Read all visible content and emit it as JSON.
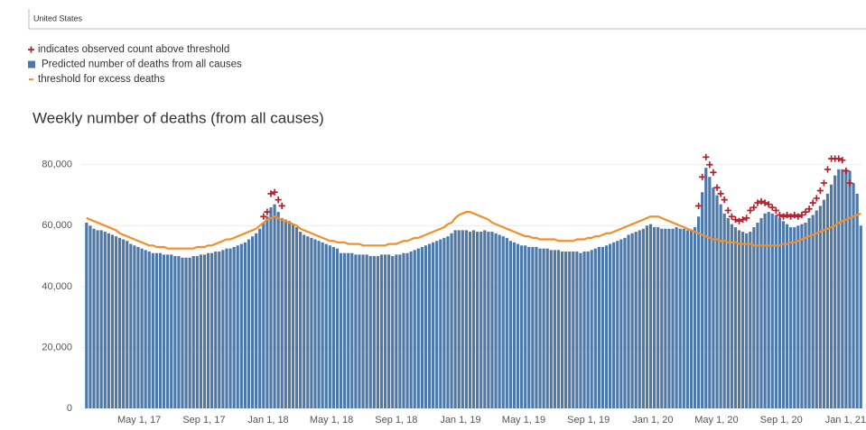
{
  "filter": "United States",
  "chart_data": {
    "type": "bar",
    "title": "Weekly number of deaths (from all causes)",
    "x": [
      "2017-01-21",
      "2017-01-28",
      "2017-02-04",
      "2017-02-11",
      "2017-02-18",
      "2017-02-25",
      "2017-03-04",
      "2017-03-11",
      "2017-03-18",
      "2017-03-25",
      "2017-04-01",
      "2017-04-08",
      "2017-04-15",
      "2017-04-22",
      "2017-04-29",
      "2017-05-06",
      "2017-05-13",
      "2017-05-20",
      "2017-05-27",
      "2017-06-03",
      "2017-06-10",
      "2017-06-17",
      "2017-06-24",
      "2017-07-01",
      "2017-07-08",
      "2017-07-15",
      "2017-07-22",
      "2017-07-29",
      "2017-08-05",
      "2017-08-12",
      "2017-08-19",
      "2017-08-26",
      "2017-09-02",
      "2017-09-09",
      "2017-09-16",
      "2017-09-23",
      "2017-09-30",
      "2017-10-07",
      "2017-10-14",
      "2017-10-21",
      "2017-10-28",
      "2017-11-04",
      "2017-11-11",
      "2017-11-18",
      "2017-11-25",
      "2017-12-02",
      "2017-12-09",
      "2017-12-16",
      "2017-12-23",
      "2017-12-30",
      "2018-01-06",
      "2018-01-13",
      "2018-01-20",
      "2018-01-27",
      "2018-02-03",
      "2018-02-10",
      "2018-02-17",
      "2018-02-24",
      "2018-03-03",
      "2018-03-10",
      "2018-03-17",
      "2018-03-24",
      "2018-03-31",
      "2018-04-07",
      "2018-04-14",
      "2018-04-21",
      "2018-04-28",
      "2018-05-05",
      "2018-05-12",
      "2018-05-19",
      "2018-05-26",
      "2018-06-02",
      "2018-06-09",
      "2018-06-16",
      "2018-06-23",
      "2018-06-30",
      "2018-07-07",
      "2018-07-14",
      "2018-07-21",
      "2018-07-28",
      "2018-08-04",
      "2018-08-11",
      "2018-08-18",
      "2018-08-25",
      "2018-09-01",
      "2018-09-08",
      "2018-09-15",
      "2018-09-22",
      "2018-09-29",
      "2018-10-06",
      "2018-10-13",
      "2018-10-20",
      "2018-10-27",
      "2018-11-03",
      "2018-11-10",
      "2018-11-17",
      "2018-11-24",
      "2018-12-01",
      "2018-12-08",
      "2018-12-15",
      "2018-12-22",
      "2018-12-29",
      "2019-01-05",
      "2019-01-12",
      "2019-01-19",
      "2019-01-26",
      "2019-02-02",
      "2019-02-09",
      "2019-02-16",
      "2019-02-23",
      "2019-03-02",
      "2019-03-09",
      "2019-03-16",
      "2019-03-23",
      "2019-03-30",
      "2019-04-06",
      "2019-04-13",
      "2019-04-20",
      "2019-04-27",
      "2019-05-04",
      "2019-05-11",
      "2019-05-18",
      "2019-05-25",
      "2019-06-01",
      "2019-06-08",
      "2019-06-15",
      "2019-06-22",
      "2019-06-29",
      "2019-07-06",
      "2019-07-13",
      "2019-07-20",
      "2019-07-27",
      "2019-08-03",
      "2019-08-10",
      "2019-08-17",
      "2019-08-24",
      "2019-08-31",
      "2019-09-07",
      "2019-09-14",
      "2019-09-21",
      "2019-09-28",
      "2019-10-05",
      "2019-10-12",
      "2019-10-19",
      "2019-10-26",
      "2019-11-02",
      "2019-11-09",
      "2019-11-16",
      "2019-11-23",
      "2019-11-30",
      "2019-12-07",
      "2019-12-14",
      "2019-12-21",
      "2019-12-28",
      "2020-01-04",
      "2020-01-11",
      "2020-01-18",
      "2020-01-25",
      "2020-02-01",
      "2020-02-08",
      "2020-02-15",
      "2020-02-22",
      "2020-02-29",
      "2020-03-07",
      "2020-03-14",
      "2020-03-21",
      "2020-03-28",
      "2020-04-04",
      "2020-04-11",
      "2020-04-18",
      "2020-04-25",
      "2020-05-02",
      "2020-05-09",
      "2020-05-16",
      "2020-05-23",
      "2020-05-30",
      "2020-06-06",
      "2020-06-13",
      "2020-06-20",
      "2020-06-27",
      "2020-07-04",
      "2020-07-11",
      "2020-07-18",
      "2020-07-25",
      "2020-08-01",
      "2020-08-08",
      "2020-08-15",
      "2020-08-22",
      "2020-08-29",
      "2020-09-05",
      "2020-09-12",
      "2020-09-19",
      "2020-09-26",
      "2020-10-03",
      "2020-10-10",
      "2020-10-17",
      "2020-10-24",
      "2020-10-31",
      "2020-11-07",
      "2020-11-14",
      "2020-11-21",
      "2020-11-28",
      "2020-12-05",
      "2020-12-12",
      "2020-12-19",
      "2020-12-26",
      "2021-01-02",
      "2021-01-09",
      "2021-01-16",
      "2021-01-23",
      "2021-01-30"
    ],
    "series": [
      {
        "name": "indicates observed count above threshold",
        "type": "scatter",
        "color": "#b5202e",
        "values": [
          null,
          null,
          null,
          null,
          null,
          null,
          null,
          null,
          null,
          null,
          null,
          null,
          null,
          null,
          null,
          null,
          null,
          null,
          null,
          null,
          null,
          null,
          null,
          null,
          null,
          null,
          null,
          null,
          null,
          null,
          null,
          null,
          null,
          null,
          null,
          null,
          null,
          null,
          null,
          null,
          null,
          null,
          null,
          null,
          null,
          null,
          null,
          null,
          63000,
          64500,
          70500,
          71000,
          68500,
          66500,
          null,
          null,
          null,
          null,
          null,
          null,
          null,
          null,
          null,
          null,
          null,
          null,
          null,
          null,
          null,
          null,
          null,
          null,
          null,
          null,
          null,
          null,
          null,
          null,
          null,
          null,
          null,
          null,
          null,
          null,
          null,
          null,
          null,
          null,
          null,
          null,
          null,
          null,
          null,
          null,
          null,
          null,
          null,
          null,
          null,
          null,
          null,
          null,
          null,
          null,
          null,
          null,
          null,
          null,
          null,
          null,
          null,
          null,
          null,
          null,
          null,
          null,
          null,
          null,
          null,
          null,
          null,
          null,
          null,
          null,
          null,
          null,
          null,
          null,
          null,
          null,
          null,
          null,
          null,
          null,
          null,
          null,
          null,
          null,
          null,
          null,
          null,
          null,
          null,
          null,
          null,
          null,
          null,
          null,
          null,
          null,
          null,
          null,
          null,
          null,
          null,
          null,
          null,
          null,
          null,
          null,
          null,
          null,
          null,
          null,
          null,
          null,
          66500,
          76000,
          82500,
          80000,
          77500,
          72500,
          70500,
          68500,
          65000,
          63000,
          62000,
          61500,
          62000,
          62500,
          65000,
          66000,
          67500,
          68000,
          67500,
          67000,
          66000,
          65000,
          63500,
          63000,
          63500,
          63000,
          63500,
          63000,
          63500,
          64500,
          65500,
          67500,
          69000,
          71500,
          74000,
          78500,
          82000,
          82000,
          82000,
          81500,
          78000,
          74000,
          null,
          null,
          null
        ]
      },
      {
        "name": "Predicted number of deaths from all causes",
        "type": "bar",
        "color": "#4e79a7",
        "values": [
          61000,
          60000,
          59000,
          58500,
          58500,
          58000,
          57500,
          57000,
          56500,
          56000,
          55500,
          55000,
          54000,
          53500,
          53000,
          52500,
          52000,
          51500,
          51000,
          51000,
          51000,
          50500,
          50500,
          50500,
          50000,
          50000,
          49500,
          49500,
          49500,
          50000,
          50000,
          50500,
          50500,
          51000,
          51000,
          51500,
          51500,
          52000,
          52500,
          52500,
          53000,
          53500,
          54000,
          54500,
          55500,
          56500,
          57500,
          59000,
          61000,
          63000,
          66000,
          67000,
          64500,
          62500,
          62000,
          61500,
          60500,
          59500,
          58000,
          57000,
          56500,
          56000,
          55500,
          55000,
          54500,
          54000,
          53500,
          53000,
          52500,
          51000,
          51000,
          51000,
          51000,
          50500,
          50500,
          50500,
          50500,
          50000,
          50000,
          50000,
          50500,
          50500,
          50500,
          50000,
          50500,
          50500,
          51000,
          51000,
          51500,
          52000,
          52500,
          53000,
          53500,
          54000,
          54500,
          55000,
          55500,
          56000,
          56500,
          57500,
          58500,
          58500,
          58500,
          58500,
          58000,
          58500,
          58000,
          58000,
          58500,
          58000,
          58000,
          57500,
          57000,
          56500,
          56000,
          55000,
          54500,
          54000,
          53500,
          53500,
          53000,
          53000,
          53000,
          52500,
          52500,
          52500,
          52000,
          52000,
          52000,
          51500,
          51500,
          51500,
          51500,
          51500,
          51000,
          51500,
          51500,
          52000,
          52500,
          53000,
          53000,
          53500,
          54000,
          54500,
          55000,
          55500,
          56000,
          57000,
          57500,
          58000,
          58500,
          59000,
          60000,
          60500,
          59500,
          59500,
          59000,
          59000,
          59000,
          59000,
          59500,
          59000,
          59000,
          58500,
          58500,
          59500,
          63000,
          71000,
          79000,
          76000,
          72500,
          70000,
          67000,
          64000,
          62500,
          60500,
          59500,
          58500,
          58000,
          57500,
          58000,
          59500,
          61000,
          62500,
          64000,
          64500,
          64000,
          63500,
          62500,
          61500,
          60500,
          59500,
          59500,
          60000,
          60500,
          61000,
          62500,
          63500,
          65000,
          66500,
          68500,
          70500,
          73500,
          76500,
          78500,
          78500,
          78500,
          78000,
          74000,
          70500,
          60000
        ]
      },
      {
        "name": "threshold for excess deaths",
        "type": "line",
        "color": "#f28e2b",
        "values": [
          62500,
          62000,
          61500,
          61000,
          60500,
          60000,
          59500,
          59000,
          58500,
          57500,
          57000,
          56500,
          56000,
          55500,
          55000,
          54500,
          54000,
          53500,
          53500,
          53000,
          53000,
          53000,
          52500,
          52500,
          52500,
          52500,
          52500,
          52500,
          52500,
          52500,
          53000,
          53000,
          53000,
          53500,
          53500,
          54000,
          54500,
          55000,
          55500,
          55500,
          56000,
          56500,
          57000,
          57500,
          58000,
          58500,
          59000,
          60000,
          61000,
          62000,
          62500,
          63000,
          62500,
          62000,
          61500,
          61000,
          60500,
          60000,
          59000,
          58500,
          58000,
          57500,
          57000,
          56500,
          56000,
          55500,
          55000,
          55000,
          54500,
          54500,
          54500,
          54000,
          54000,
          54000,
          54000,
          53500,
          53500,
          53500,
          53500,
          53500,
          53500,
          53500,
          54000,
          54000,
          54000,
          54500,
          55000,
          55000,
          55500,
          56000,
          56000,
          56500,
          57000,
          57500,
          58000,
          58500,
          59000,
          59500,
          60500,
          61000,
          62500,
          63500,
          64000,
          64500,
          64500,
          64000,
          63500,
          63000,
          62500,
          62000,
          61000,
          60500,
          60000,
          59500,
          59000,
          58500,
          58000,
          57500,
          57000,
          56500,
          56500,
          56000,
          56000,
          55500,
          55500,
          55500,
          55500,
          55500,
          55000,
          55000,
          55000,
          55000,
          55000,
          55500,
          55500,
          55500,
          56000,
          56000,
          56500,
          56500,
          57000,
          57500,
          57500,
          58000,
          58500,
          59000,
          59500,
          60000,
          60500,
          61000,
          61500,
          62000,
          62500,
          63000,
          63000,
          63000,
          62500,
          62000,
          61500,
          61000,
          60500,
          60000,
          59500,
          59000,
          58500,
          58000,
          57500,
          57000,
          56500,
          56000,
          55500,
          55500,
          55000,
          55000,
          54500,
          54500,
          54500,
          54000,
          54000,
          54000,
          54000,
          53500,
          53500,
          53500,
          53500,
          53500,
          53500,
          53500,
          53500,
          54000,
          54000,
          54500,
          54500,
          55000,
          55500,
          56000,
          56500,
          57000,
          57500,
          58000,
          58500,
          59000,
          59500,
          60000,
          61000,
          61500,
          62000,
          62500,
          63000,
          63500,
          64000
        ]
      }
    ],
    "xlim": [
      "2017-01-11",
      "2021-02-02"
    ],
    "xticks": [
      {
        "value": "2017-05-01",
        "label": "May 1, 17"
      },
      {
        "value": "2017-09-01",
        "label": "Sep 1, 17"
      },
      {
        "value": "2018-01-01",
        "label": "Jan 1, 18"
      },
      {
        "value": "2018-05-01",
        "label": "May 1, 18"
      },
      {
        "value": "2018-09-01",
        "label": "Sep 1, 18"
      },
      {
        "value": "2019-01-01",
        "label": "Jan 1, 19"
      },
      {
        "value": "2019-05-01",
        "label": "May 1, 19"
      },
      {
        "value": "2019-09-01",
        "label": "Sep 1, 19"
      },
      {
        "value": "2020-01-01",
        "label": "Jan 1, 20"
      },
      {
        "value": "2020-05-01",
        "label": "May 1, 20"
      },
      {
        "value": "2020-09-01",
        "label": "Sep 1, 20"
      },
      {
        "value": "2021-01-01",
        "label": "Jan 1, 21"
      }
    ],
    "ylim": [
      0,
      90000
    ],
    "yticks": [
      0,
      {
        "value": 20000,
        "label": "20,000"
      },
      {
        "value": 40000,
        "label": "40,000"
      },
      {
        "value": 60000,
        "label": "60,000"
      },
      {
        "value": 80000,
        "label": "80,000"
      }
    ],
    "grid": true
  }
}
